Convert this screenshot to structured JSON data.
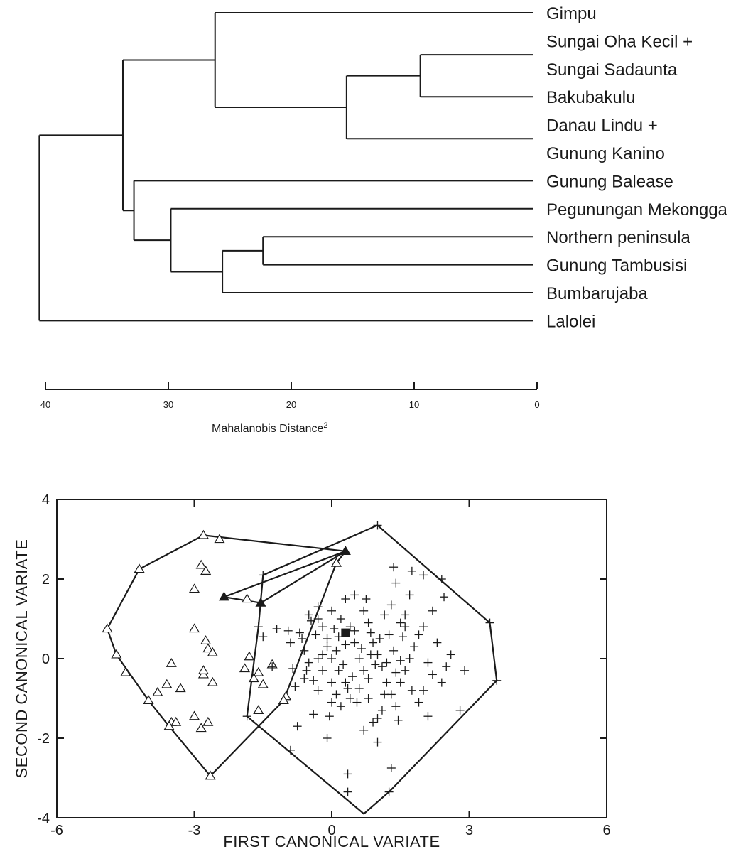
{
  "chart_data": [
    {
      "type": "dendrogram",
      "xlabel": "Mahalanobis Distance",
      "xlabel_superscript": "2",
      "xlim": [
        40,
        0
      ],
      "xticks": [
        "40",
        "30",
        "20",
        "10",
        "0"
      ],
      "leaves": [
        {
          "label": "Gimpu"
        },
        {
          "label": "Sungai Oha Kecil +"
        },
        {
          "label": "Sungai Sadaunta"
        },
        {
          "label": "Bakubakulu"
        },
        {
          "label": "Danau Lindu +"
        },
        {
          "label": "Gunung Kanino"
        },
        {
          "label": "Gunung Balease"
        },
        {
          "label": "Pegunungan Mekongga"
        },
        {
          "label": "Northern peninsula"
        },
        {
          "label": "Gunung Tambusisi"
        },
        {
          "label": "Bumbarujaba"
        },
        {
          "label": "Lalolei"
        }
      ],
      "merges": [
        {
          "id": "A",
          "members": [
            "Sungai Oha Kecil + Sungai Sadaunta",
            "Bakubakulu"
          ],
          "distance": 9.5
        },
        {
          "id": "B",
          "members": [
            "A",
            "Danau Lindu + Gunung Kanino"
          ],
          "distance": 15.5
        },
        {
          "id": "C",
          "members": [
            "Gimpu",
            "B"
          ],
          "distance": 26.2
        },
        {
          "id": "D",
          "members": [
            "Northern peninsula",
            "Gunung Tambusisi"
          ],
          "distance": 22.3
        },
        {
          "id": "E",
          "members": [
            "D",
            "Bumbarujaba"
          ],
          "distance": 25.6
        },
        {
          "id": "F",
          "members": [
            "Pegunungan Mekongga",
            "E"
          ],
          "distance": 29.8
        },
        {
          "id": "G",
          "members": [
            "Gunung Balease",
            "F"
          ],
          "distance": 32.8
        },
        {
          "id": "H",
          "members": [
            "C",
            "G"
          ],
          "distance": 33.7
        },
        {
          "id": "I",
          "members": [
            "H",
            "Lalolei"
          ],
          "distance": 40.5
        }
      ]
    },
    {
      "type": "scatter",
      "xlabel": "FIRST CANONICAL VARIATE",
      "ylabel": "SECOND CANONICAL VARIATE",
      "xlim": [
        -6,
        6
      ],
      "ylim": [
        -4,
        4
      ],
      "xticks": [
        "-6",
        "-3",
        "0",
        "3",
        "6"
      ],
      "yticks": [
        "4",
        "2",
        "0",
        "-2",
        "-4"
      ],
      "series": [
        {
          "marker": "open-triangle",
          "points": [
            [
              -4.9,
              0.75
            ],
            [
              -4.7,
              0.1
            ],
            [
              -4.5,
              -0.35
            ],
            [
              -4.0,
              -1.05
            ],
            [
              -3.8,
              -0.85
            ],
            [
              -3.6,
              -0.65
            ],
            [
              -3.5,
              -1.6
            ],
            [
              -3.5,
              -0.12
            ],
            [
              -3.4,
              -1.6
            ],
            [
              -3.3,
              -0.75
            ],
            [
              -3.55,
              -1.7
            ],
            [
              -3.0,
              0.75
            ],
            [
              -3.0,
              1.75
            ],
            [
              -3.0,
              -1.45
            ],
            [
              -2.85,
              2.35
            ],
            [
              -2.8,
              -0.4
            ],
            [
              -2.85,
              -1.75
            ],
            [
              -2.75,
              0.45
            ],
            [
              -2.7,
              0.25
            ],
            [
              -2.75,
              2.2
            ],
            [
              -2.8,
              -0.3
            ],
            [
              -2.7,
              -1.6
            ],
            [
              -2.6,
              0.15
            ],
            [
              -2.6,
              -0.6
            ],
            [
              -2.8,
              3.1
            ],
            [
              -2.45,
              3.0
            ],
            [
              -4.2,
              2.25
            ],
            [
              -2.65,
              -2.95
            ],
            [
              -1.85,
              1.5
            ],
            [
              -1.8,
              0.05
            ],
            [
              -1.6,
              -0.35
            ],
            [
              -1.5,
              -0.65
            ],
            [
              -1.7,
              -0.5
            ],
            [
              -1.9,
              -0.25
            ],
            [
              -1.6,
              -1.3
            ],
            [
              -1.3,
              -0.15
            ],
            [
              -1.0,
              -0.95
            ],
            [
              -1.05,
              -1.05
            ],
            [
              0.1,
              2.4
            ]
          ]
        },
        {
          "marker": "filled-triangle",
          "points": [
            [
              -2.35,
              1.55
            ],
            [
              -1.55,
              1.4
            ],
            [
              0.3,
              2.7
            ]
          ]
        },
        {
          "marker": "plus",
          "points": [
            [
              1.0,
              3.35
            ],
            [
              -1.5,
              2.1
            ],
            [
              -1.6,
              0.8
            ],
            [
              -1.5,
              0.55
            ],
            [
              -1.3,
              -0.2
            ],
            [
              -1.85,
              -1.45
            ],
            [
              -1.2,
              0.75
            ],
            [
              -0.95,
              0.7
            ],
            [
              -0.7,
              0.65
            ],
            [
              -0.9,
              0.4
            ],
            [
              -0.6,
              0.2
            ],
            [
              -0.5,
              -0.1
            ],
            [
              -0.8,
              -0.7
            ],
            [
              -0.6,
              -0.5
            ],
            [
              -0.75,
              -1.7
            ],
            [
              -0.9,
              -2.3
            ],
            [
              -0.5,
              1.1
            ],
            [
              -0.3,
              1.3
            ],
            [
              -0.2,
              0.8
            ],
            [
              -0.1,
              0.5
            ],
            [
              0.1,
              0.2
            ],
            [
              0.15,
              -0.3
            ],
            [
              0.3,
              -0.6
            ],
            [
              0.4,
              -1.0
            ],
            [
              0.3,
              1.5
            ],
            [
              0.5,
              1.6
            ],
            [
              0.7,
              1.2
            ],
            [
              0.8,
              0.9
            ],
            [
              0.9,
              0.4
            ],
            [
              1.0,
              0.1
            ],
            [
              1.1,
              -0.2
            ],
            [
              1.2,
              -0.6
            ],
            [
              1.3,
              -0.9
            ],
            [
              1.4,
              -1.2
            ],
            [
              0.6,
              0.0
            ],
            [
              0.7,
              -0.3
            ],
            [
              0.8,
              -0.5
            ],
            [
              0.5,
              0.4
            ],
            [
              0.4,
              0.8
            ],
            [
              0.2,
              1.0
            ],
            [
              0.0,
              1.2
            ],
            [
              -0.1,
              0.3
            ],
            [
              -0.3,
              0.0
            ],
            [
              -0.2,
              -0.3
            ],
            [
              0.0,
              -0.6
            ],
            [
              0.1,
              -0.9
            ],
            [
              0.2,
              -1.2
            ],
            [
              -0.4,
              -1.4
            ],
            [
              -0.1,
              -2.0
            ],
            [
              0.35,
              -2.9
            ],
            [
              0.35,
              -3.35
            ],
            [
              1.3,
              -2.75
            ],
            [
              1.25,
              -3.35
            ],
            [
              0.7,
              -1.8
            ],
            [
              0.9,
              -1.6
            ],
            [
              1.1,
              -1.3
            ],
            [
              1.5,
              -0.6
            ],
            [
              1.6,
              -0.3
            ],
            [
              1.7,
              0.0
            ],
            [
              1.8,
              0.3
            ],
            [
              1.9,
              0.6
            ],
            [
              1.5,
              0.9
            ],
            [
              1.3,
              1.35
            ],
            [
              1.4,
              1.9
            ],
            [
              1.35,
              2.3
            ],
            [
              1.75,
              2.2
            ],
            [
              2.0,
              2.1
            ],
            [
              2.4,
              2.0
            ],
            [
              2.45,
              1.55
            ],
            [
              1.6,
              1.1
            ],
            [
              1.7,
              1.6
            ],
            [
              2.2,
              1.2
            ],
            [
              2.0,
              0.8
            ],
            [
              2.3,
              0.4
            ],
            [
              2.1,
              -0.1
            ],
            [
              2.2,
              -0.4
            ],
            [
              2.0,
              -0.8
            ],
            [
              1.9,
              -1.1
            ],
            [
              2.1,
              -1.45
            ],
            [
              2.4,
              -0.6
            ],
            [
              2.5,
              -0.2
            ],
            [
              2.6,
              0.1
            ],
            [
              2.9,
              -0.3
            ],
            [
              2.8,
              -1.3
            ],
            [
              3.45,
              0.9
            ],
            [
              3.6,
              -0.55
            ],
            [
              0.55,
              -1.1
            ],
            [
              0.8,
              -1.0
            ],
            [
              1.15,
              -0.9
            ],
            [
              1.05,
              0.5
            ],
            [
              1.25,
              0.6
            ],
            [
              0.95,
              -0.15
            ],
            [
              0.3,
              0.35
            ],
            [
              0.5,
              0.7
            ],
            [
              -0.35,
              0.6
            ],
            [
              -0.65,
              0.5
            ],
            [
              -0.45,
              0.95
            ],
            [
              0.05,
              0.75
            ],
            [
              0.25,
              -0.15
            ],
            [
              0.45,
              -0.45
            ],
            [
              1.45,
              -1.55
            ],
            [
              1.0,
              -2.1
            ],
            [
              -0.3,
              -0.8
            ],
            [
              -0.05,
              -1.45
            ],
            [
              0.75,
              1.5
            ],
            [
              1.15,
              1.1
            ],
            [
              1.55,
              0.55
            ],
            [
              1.75,
              -0.8
            ],
            [
              0.6,
              -0.75
            ],
            [
              0.0,
              0.0
            ],
            [
              -0.2,
              0.1
            ],
            [
              0.15,
              0.55
            ],
            [
              -0.55,
              -0.3
            ],
            [
              0.65,
              0.25
            ],
            [
              1.35,
              0.2
            ],
            [
              1.5,
              -0.05
            ],
            [
              0.85,
              0.1
            ],
            [
              1.2,
              -0.1
            ],
            [
              1.4,
              -0.35
            ],
            [
              -0.85,
              -0.25
            ],
            [
              -0.4,
              -0.55
            ],
            [
              -0.3,
              1.0
            ],
            [
              0.85,
              0.65
            ],
            [
              0.35,
              -0.75
            ],
            [
              1.6,
              0.8
            ],
            [
              1.0,
              -1.5
            ],
            [
              0.0,
              -1.1
            ]
          ]
        },
        {
          "marker": "filled-square",
          "points": [
            [
              0.3,
              0.65
            ]
          ]
        }
      ],
      "hulls": [
        {
          "marker": "open-triangle",
          "vertices": [
            [
              -4.9,
              0.75
            ],
            [
              -4.2,
              2.25
            ],
            [
              -2.8,
              3.1
            ],
            [
              0.3,
              2.7
            ],
            [
              0.1,
              2.4
            ],
            [
              -1.05,
              -1.05
            ],
            [
              -2.65,
              -2.95
            ],
            [
              -3.55,
              -1.7
            ],
            [
              -4.0,
              -1.05
            ],
            [
              -4.7,
              0.1
            ]
          ]
        },
        {
          "marker": "plus",
          "vertices": [
            [
              1.0,
              3.35
            ],
            [
              3.45,
              0.9
            ],
            [
              3.6,
              -0.55
            ],
            [
              1.25,
              -3.35
            ],
            [
              0.7,
              -3.9
            ],
            [
              -1.85,
              -1.45
            ],
            [
              -1.6,
              0.8
            ],
            [
              -1.5,
              2.1
            ]
          ]
        },
        {
          "marker": "filled-triangle",
          "vertices": [
            [
              -2.35,
              1.55
            ],
            [
              0.3,
              2.7
            ],
            [
              -1.55,
              1.4
            ]
          ]
        }
      ]
    }
  ]
}
